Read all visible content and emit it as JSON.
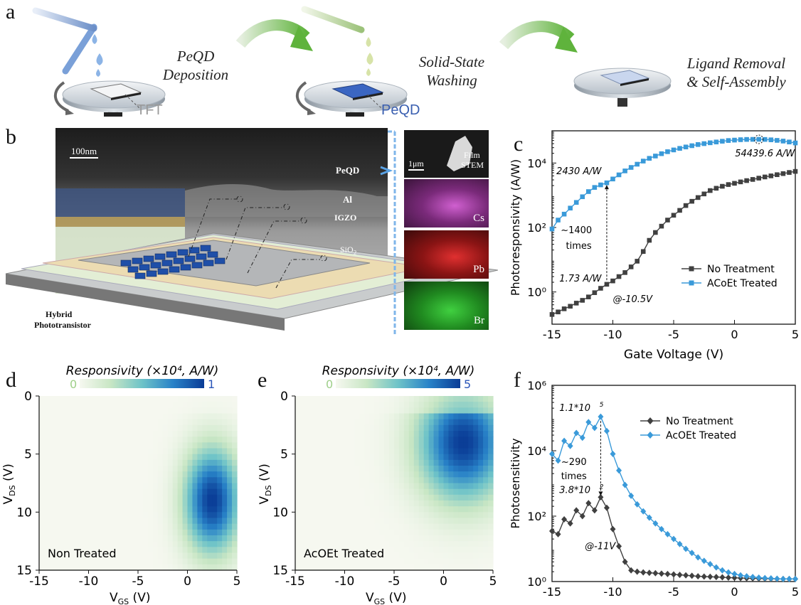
{
  "panels": {
    "a": "a",
    "b": "b",
    "c": "c",
    "d": "d",
    "e": "e",
    "f": "f"
  },
  "panel_a": {
    "step1": [
      "PeQD",
      "Deposition"
    ],
    "step2": [
      "Solid-State",
      "Washing"
    ],
    "step3": [
      "Ligand Removal",
      "& Self-Assembly"
    ],
    "label_tft": "TFT",
    "label_peqd": "PeQD",
    "colors": {
      "tft_label": "#9a9a9a",
      "peqd_label": "#3a5fb0",
      "arrow": "#6fbf4a"
    }
  },
  "panel_b": {
    "scale_bar": "100nm",
    "layers": {
      "peqd": "PeQD",
      "al": "Al",
      "igzo": "IGZO",
      "sio2_main": "SiO",
      "sio2_sub": "2"
    },
    "device_caption": [
      "Hybrid",
      "Phototransistor"
    ],
    "stem": {
      "scale": "1μm",
      "title": [
        "Film",
        "STEM"
      ],
      "maps": [
        "Cs",
        "Pb",
        "Br"
      ]
    },
    "colors": {
      "cs": "#c040c0",
      "pb": "#d02020",
      "br": "#30b030",
      "device": "#1f4fa8"
    }
  },
  "chart_data": [
    {
      "id": "c",
      "type": "line",
      "xlabel": "Gate Voltage (V)",
      "ylabel": "Photoresponsivity (A/W)",
      "xlim": [
        -15,
        5
      ],
      "ylim": [
        0.1,
        100000
      ],
      "yscale": "log",
      "xticks": [
        "-15",
        "-10",
        "-5",
        "0",
        "5"
      ],
      "yticks": [
        "10⁰",
        "10²",
        "10⁴"
      ],
      "legend_position": "bottom-right",
      "series": [
        {
          "name": "No Treatment",
          "color": "#404040",
          "marker": "square",
          "x": [
            -15,
            -14.5,
            -14,
            -13.5,
            -13,
            -12.5,
            -12,
            -11.5,
            -11,
            -10.5,
            -10,
            -9.5,
            -9,
            -8.5,
            -8,
            -7.5,
            -7,
            -6.5,
            -6,
            -5.5,
            -5,
            -4.5,
            -4,
            -3.5,
            -3,
            -2.5,
            -2,
            -1.5,
            -1,
            -0.5,
            0,
            0.5,
            1,
            1.5,
            2,
            2.5,
            3,
            3.5,
            4,
            4.5,
            5
          ],
          "y": [
            0.2,
            0.24,
            0.3,
            0.36,
            0.45,
            0.55,
            0.7,
            0.95,
            1.3,
            1.73,
            2.2,
            3,
            4,
            6,
            9,
            18,
            40,
            70,
            110,
            170,
            240,
            340,
            480,
            650,
            850,
            1100,
            1400,
            1650,
            1900,
            2150,
            2350,
            2600,
            2850,
            3100,
            3400,
            3700,
            4000,
            4350,
            4700,
            5100,
            5500
          ]
        },
        {
          "name": "ACoEt Treated",
          "color": "#3a9ad9",
          "marker": "square",
          "x": [
            -15,
            -14.5,
            -14,
            -13.5,
            -13,
            -12.5,
            -12,
            -11.5,
            -11,
            -10.5,
            -10,
            -9.5,
            -9,
            -8.5,
            -8,
            -7.5,
            -7,
            -6.5,
            -6,
            -5.5,
            -5,
            -4.5,
            -4,
            -3.5,
            -3,
            -2.5,
            -2,
            -1.5,
            -1,
            -0.5,
            0,
            0.5,
            1,
            1.5,
            2,
            2.5,
            3,
            3.5,
            4,
            4.5,
            5
          ],
          "y": [
            90,
            170,
            260,
            400,
            600,
            900,
            1300,
            1750,
            2100,
            2430,
            3200,
            4300,
            5700,
            7300,
            9200,
            11500,
            14000,
            16500,
            19500,
            22500,
            25500,
            28500,
            31500,
            34500,
            37500,
            40000,
            42500,
            45000,
            47500,
            50000,
            51500,
            53000,
            54000,
            54300,
            54439.6,
            54000,
            52500,
            50500,
            48000,
            45000,
            42000
          ]
        }
      ],
      "annotations": {
        "upper": "2430 A/W",
        "lower": "1.73 A/W",
        "ratio": [
          "~1400",
          "times"
        ],
        "voltage": "@-10.5V",
        "peak": "54439.6 A/W"
      }
    },
    {
      "id": "d",
      "type": "heatmap",
      "title": "Responsivity (×10⁴, A/W)",
      "colorbar_min": "0",
      "colorbar_max": "1",
      "xlabel": "V",
      "xlabel_sub": "GS",
      "xlabel_unit": " (V)",
      "ylabel": "V",
      "ylabel_sub": "DS",
      "ylabel_unit": " (V)",
      "xlim": [
        -15,
        5
      ],
      "ylim": [
        0,
        15
      ],
      "xticks": [
        "-15",
        "-10",
        "-5",
        "0",
        "5"
      ],
      "yticks": [
        "0",
        "5",
        "10",
        "15"
      ],
      "inset_label": "Non Treated",
      "peak": {
        "x": 2.5,
        "y": 9,
        "value": 1
      },
      "spread": {
        "x": 2.8,
        "y": 4.5
      }
    },
    {
      "id": "e",
      "type": "heatmap",
      "title": "Responsivity (×10⁴, A/W)",
      "colorbar_min": "0",
      "colorbar_max": "5",
      "xlabel": "V",
      "xlabel_sub": "GS",
      "xlabel_unit": " (V)",
      "ylabel": "V",
      "ylabel_sub": "DS",
      "ylabel_unit": " (V)",
      "xlim": [
        -15,
        5
      ],
      "ylim": [
        0,
        15
      ],
      "xticks": [
        "-15",
        "-10",
        "-5",
        "0",
        "5"
      ],
      "yticks": [
        "0",
        "5",
        "10",
        "15"
      ],
      "inset_label": "AcOEt Treated",
      "peak": {
        "x": 2,
        "y": 4,
        "value": 5
      },
      "spread": {
        "x": 4.5,
        "y": 5
      }
    },
    {
      "id": "f",
      "type": "line",
      "xlabel": "Gate Voltage (V)",
      "ylabel": "Photosensitivity",
      "xlim": [
        -15,
        5
      ],
      "ylim": [
        1,
        1000000
      ],
      "yscale": "log",
      "xticks": [
        "-15",
        "-10",
        "-5",
        "0",
        "5"
      ],
      "yticks": [
        "10⁰",
        "10²",
        "10⁴",
        "10⁶"
      ],
      "legend_position": "top-right",
      "series": [
        {
          "name": "No Treatment",
          "color": "#404040",
          "marker": "diamond",
          "x": [
            -15,
            -14.5,
            -14,
            -13.5,
            -13,
            -12.5,
            -12,
            -11.5,
            -11,
            -10.5,
            -10,
            -9.5,
            -9,
            -8.5,
            -8,
            -7.5,
            -7,
            -6.5,
            -6,
            -5.5,
            -5,
            -4.5,
            -4,
            -3.5,
            -3,
            -2.5,
            -2,
            -1.5,
            -1,
            -0.5,
            0,
            0.5,
            1,
            1.5,
            2,
            2.5,
            3,
            3.5,
            4,
            4.5,
            5
          ],
          "y": [
            35,
            28,
            80,
            60,
            150,
            100,
            250,
            150,
            380,
            180,
            40,
            12,
            4,
            2.2,
            2,
            1.9,
            1.85,
            1.8,
            1.75,
            1.7,
            1.65,
            1.6,
            1.55,
            1.5,
            1.45,
            1.42,
            1.4,
            1.38,
            1.35,
            1.32,
            1.3,
            1.28,
            1.26,
            1.25,
            1.24,
            1.23,
            1.22,
            1.21,
            1.2,
            1.2,
            1.2
          ]
        },
        {
          "name": "AcOEt Treated",
          "color": "#3a9ad9",
          "marker": "diamond",
          "x": [
            -15,
            -14.5,
            -14,
            -13.5,
            -13,
            -12.5,
            -12,
            -11.5,
            -11,
            -10.5,
            -10,
            -9.5,
            -9,
            -8.5,
            -8,
            -7.5,
            -7,
            -6.5,
            -6,
            -5.5,
            -5,
            -4.5,
            -4,
            -3.5,
            -3,
            -2.5,
            -2,
            -1.5,
            -1,
            -0.5,
            0,
            0.5,
            1,
            1.5,
            2,
            2.5,
            3,
            3.5,
            4,
            4.5,
            5
          ],
          "y": [
            8000,
            5000,
            20000,
            14000,
            35000,
            25000,
            75000,
            50000,
            110000,
            40000,
            8000,
            2500,
            900,
            420,
            230,
            140,
            90,
            60,
            40,
            28,
            20,
            14,
            10,
            7.5,
            5.5,
            4.3,
            3.4,
            2.7,
            2.2,
            1.9,
            1.7,
            1.55,
            1.45,
            1.38,
            1.32,
            1.28,
            1.25,
            1.22,
            1.2,
            1.2,
            1.2
          ]
        }
      ],
      "annotations": {
        "upper_main": "1.1*10",
        "upper_exp": "5",
        "lower_main": "3.8*10",
        "lower_exp": "2",
        "ratio": [
          "~290",
          "times"
        ],
        "voltage": "@-11V"
      }
    }
  ]
}
